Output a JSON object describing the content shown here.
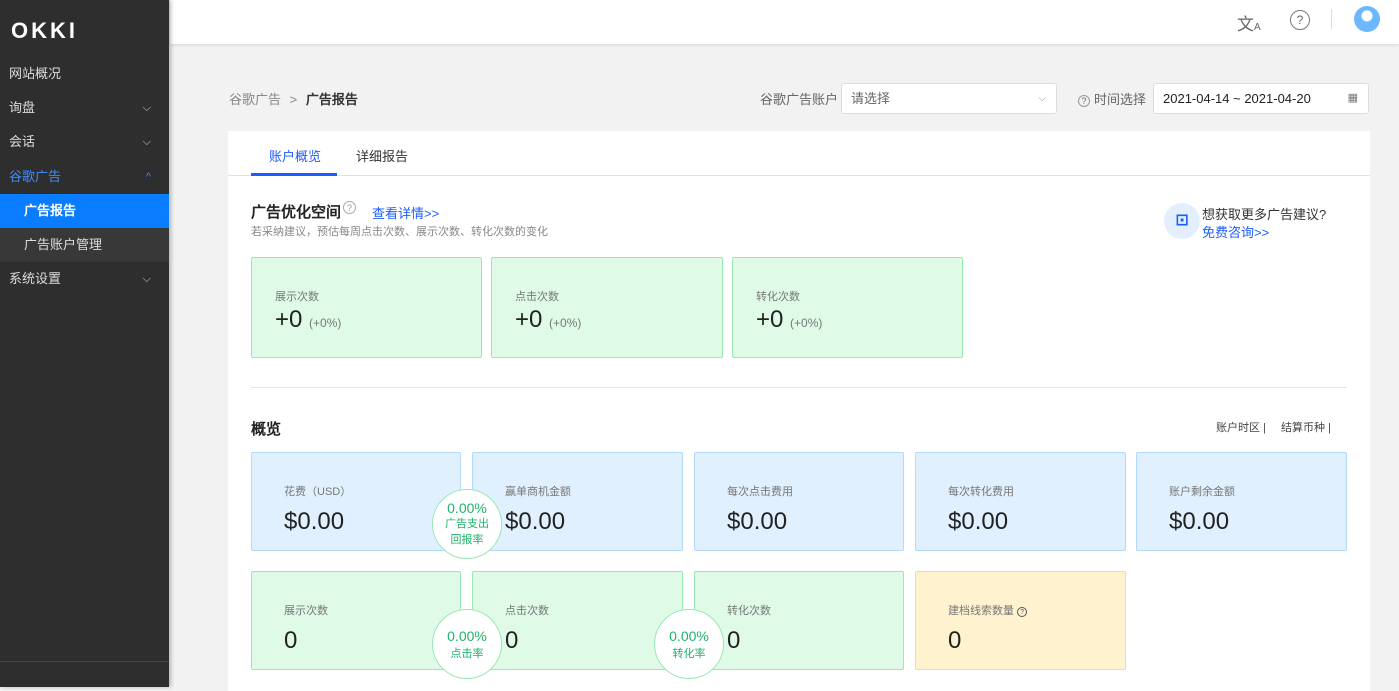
{
  "sidebar": {
    "logo": "OKKI",
    "items": [
      {
        "label": "网站概况"
      },
      {
        "label": "询盘",
        "chevron": "down"
      },
      {
        "label": "会话",
        "chevron": "down"
      },
      {
        "label": "谷歌广告",
        "chevron": "up"
      },
      {
        "label": "广告报告"
      },
      {
        "label": "广告账户管理"
      },
      {
        "label": "系统设置",
        "chevron": "down"
      }
    ]
  },
  "header": {
    "icons": [
      "translate-icon",
      "help-icon",
      "avatar"
    ]
  },
  "breadcrumb": {
    "parent": "谷歌广告",
    "sep": ">",
    "current": "广告报告"
  },
  "filters": {
    "account_label": "谷歌广告账户",
    "account_placeholder": "请选择",
    "time_label": "时间选择",
    "date_range": "2021-04-14 ~ 2021-04-20"
  },
  "tabs": [
    {
      "label": "账户概览",
      "active": true
    },
    {
      "label": "详细报告"
    }
  ],
  "optimization": {
    "title": "广告优化空间",
    "link": "查看详情>>",
    "desc": "若采纳建议，预估每周点击次数、展示次数、转化次数的变化",
    "consult_q": "想获取更多广告建议?",
    "consult_link": "免费咨询>>",
    "cards": [
      {
        "label": "展示次数",
        "value": "+0",
        "delta": "(+0%)"
      },
      {
        "label": "点击次数",
        "value": "+0",
        "delta": "(+0%)"
      },
      {
        "label": "转化次数",
        "value": "+0",
        "delta": "(+0%)"
      }
    ]
  },
  "overview": {
    "title": "概览",
    "timezone": "账户时区 |",
    "currency": "结算币种 |",
    "row1": [
      {
        "label": "花费（USD）",
        "value": "$0.00"
      },
      {
        "label": "赢单商机金额",
        "value": "$0.00"
      },
      {
        "label": "每次点击费用",
        "value": "$0.00"
      },
      {
        "label": "每次转化费用",
        "value": "$0.00"
      },
      {
        "label": "账户剩余金额",
        "value": "$0.00"
      }
    ],
    "row2": [
      {
        "label": "展示次数",
        "value": "0"
      },
      {
        "label": "点击次数",
        "value": "0"
      },
      {
        "label": "转化次数",
        "value": "0"
      },
      {
        "label": "建档线索数量",
        "value": "0"
      }
    ],
    "rates": [
      {
        "value": "0.00%",
        "label1": "广告支出",
        "label2": "回报率"
      },
      {
        "value": "0.00%",
        "label1": "点击率"
      },
      {
        "value": "0.00%",
        "label1": "转化率"
      }
    ]
  },
  "colors": {
    "accent": "#1a5cff",
    "sidebar_active": "#0a7cff",
    "green": "#1db46a"
  }
}
